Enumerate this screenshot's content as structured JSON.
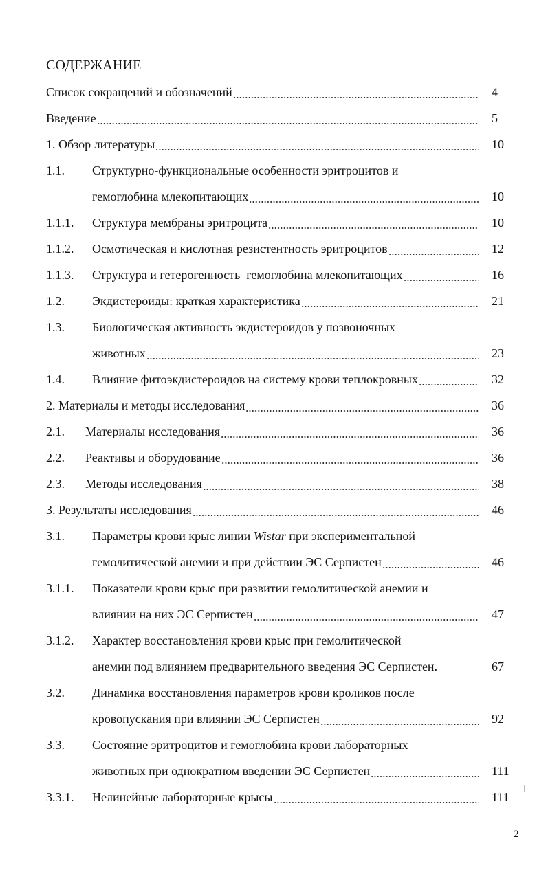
{
  "title": "СОДЕРЖАНИЕ",
  "page_number": "2",
  "entries": [
    {
      "num": "",
      "lines": [
        [
          "Список сокращений и обозначений"
        ]
      ],
      "page": "4"
    },
    {
      "num": "",
      "lines": [
        [
          "Введение"
        ]
      ],
      "page": "5"
    },
    {
      "num": "",
      "lines": [
        [
          "1. Обзор литературы"
        ]
      ],
      "page": "10"
    },
    {
      "num": "1.1.",
      "lines": [
        [
          "Структурно-функциональные особенности эритроцитов и"
        ],
        [
          "гемоглобина млекопитающих"
        ]
      ],
      "page": "10"
    },
    {
      "num": "1.1.1.",
      "lines": [
        [
          "Структура мембраны эритроцита"
        ]
      ],
      "page": "10"
    },
    {
      "num": "1.1.2.",
      "lines": [
        [
          "Осмотическая и кислотная резистентность эритроцитов"
        ]
      ],
      "page": "12"
    },
    {
      "num": "1.1.3.",
      "lines": [
        [
          "Структура и гетерогенность  гемоглобина млекопитающих"
        ]
      ],
      "page": "16"
    },
    {
      "num": "1.2.",
      "lines": [
        [
          "Экдистероиды: краткая характеристика"
        ]
      ],
      "page": "21"
    },
    {
      "num": "1.3.",
      "lines": [
        [
          "Биологическая активность экдистероидов у позвоночных"
        ],
        [
          "животных"
        ]
      ],
      "page": "23"
    },
    {
      "num": "1.4.",
      "lines": [
        [
          "Влияние фитоэкдистероидов на систему крови теплокровных"
        ]
      ],
      "page": "32"
    },
    {
      "num": "",
      "lines": [
        [
          "2. Материалы и методы исследования"
        ]
      ],
      "page": "36"
    },
    {
      "num": "2.1.",
      "lines": [
        [
          "Материалы исследования"
        ]
      ],
      "page": "36",
      "narrow": true
    },
    {
      "num": "2.2.",
      "lines": [
        [
          "Реактивы и оборудование"
        ]
      ],
      "page": "36",
      "narrow": true
    },
    {
      "num": "2.3.",
      "lines": [
        [
          "Методы исследования"
        ]
      ],
      "page": "38",
      "narrow": true
    },
    {
      "num": "",
      "lines": [
        [
          "3. Результаты исследования"
        ]
      ],
      "page": "46"
    },
    {
      "num": "3.1.",
      "lines": [
        [
          "Параметры крови крыс линии ",
          "Wistar",
          " при экспериментальной"
        ],
        [
          "гемолитической анемии и при действии ЭС Серпистен"
        ]
      ],
      "page": "46"
    },
    {
      "num": "3.1.1.",
      "lines": [
        [
          "Показатели крови крыс при развитии гемолитической анемии и"
        ],
        [
          "влиянии на них ЭС Серпистен"
        ]
      ],
      "page": "47"
    },
    {
      "num": "3.1.2.",
      "lines": [
        [
          "Характер восстановления крови крыс при гемолитической"
        ],
        [
          "анемии под влиянием предварительного введения ЭС Серпистен."
        ]
      ],
      "page": "67",
      "no_leader": true
    },
    {
      "num": "3.2.",
      "lines": [
        [
          "Динамика восстановления параметров крови кроликов после"
        ],
        [
          "кровопускания при влиянии ЭС Серпистен"
        ]
      ],
      "page": "92"
    },
    {
      "num": "3.3.",
      "lines": [
        [
          "Состояние эритроцитов и гемоглобина крови лабораторных"
        ],
        [
          "животных при однократном введении ЭС Серпистен"
        ]
      ],
      "page": "111"
    },
    {
      "num": "3.3.1.",
      "lines": [
        [
          "Нелинейные лабораторные крысы"
        ]
      ],
      "page": "111"
    }
  ]
}
